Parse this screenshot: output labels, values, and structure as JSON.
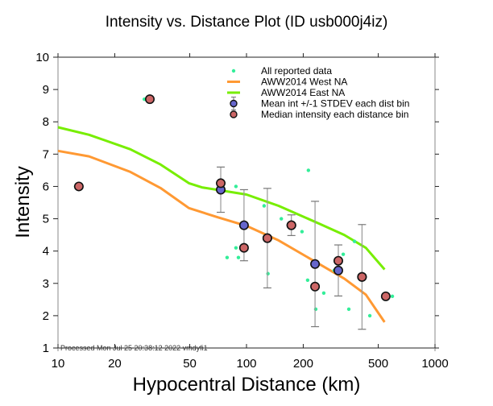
{
  "chart_data": {
    "type": "scatter",
    "title": "Intensity vs. Distance Plot (ID usb000j4iz)",
    "xlabel": "Hypocentral Distance (km)",
    "ylabel": "Intensity",
    "xscale": "log",
    "xlim": [
      10,
      1000
    ],
    "ylim": [
      1,
      10
    ],
    "xticks": [
      10,
      20,
      50,
      100,
      200,
      500,
      1000
    ],
    "xtick_labels": [
      "10",
      "20",
      "50",
      "100",
      "200",
      "500",
      "1000"
    ],
    "yticks": [
      1,
      2,
      3,
      4,
      5,
      6,
      7,
      8,
      9,
      10
    ],
    "ytick_labels": [
      "1",
      "2",
      "3",
      "4",
      "5",
      "6",
      "7",
      "8",
      "9",
      "10"
    ],
    "grid": false,
    "legend_position": "top-right",
    "legend": [
      {
        "label": "All reported data",
        "marker": "dot",
        "color": "#33ee99"
      },
      {
        "label": "AWW2014 West NA",
        "marker": "line",
        "color": "#ff9933"
      },
      {
        "label": "AWW2014 East NA",
        "marker": "line",
        "color": "#77ee00"
      },
      {
        "label": "Mean int +/-1 STDEV each dist bin",
        "marker": "circle-errorbar",
        "color": "#6666cc"
      },
      {
        "label": "Median intensity each distance bin",
        "marker": "circle",
        "color": "#cc6666"
      }
    ],
    "series": [
      {
        "name": "All reported data",
        "type": "scatter",
        "color": "#33ee99",
        "points": [
          [
            12.4,
            6.0
          ],
          [
            28.7,
            8.7
          ],
          [
            87.9,
            6.0
          ],
          [
            78.9,
            3.8
          ],
          [
            90.6,
            3.8
          ],
          [
            87.9,
            4.1
          ],
          [
            124,
            5.4
          ],
          [
            130,
            3.3
          ],
          [
            153,
            5.0
          ],
          [
            197,
            4.6
          ],
          [
            213,
            6.5
          ],
          [
            211,
            3.1
          ],
          [
            233,
            2.2
          ],
          [
            257,
            2.7
          ],
          [
            292,
            3.4
          ],
          [
            326,
            3.9
          ],
          [
            349,
            2.2
          ],
          [
            374,
            4.3
          ],
          [
            451,
            2.0
          ],
          [
            594,
            2.6
          ]
        ]
      },
      {
        "name": "AWW2014 West NA",
        "type": "line",
        "color": "#ff9933",
        "points": [
          [
            10,
            7.1
          ],
          [
            14.6,
            6.93
          ],
          [
            24.2,
            6.45
          ],
          [
            35,
            5.95
          ],
          [
            49.5,
            5.33
          ],
          [
            70,
            5.05
          ],
          [
            100,
            4.78
          ],
          [
            148,
            4.33
          ],
          [
            243,
            3.6
          ],
          [
            330,
            3.15
          ],
          [
            430,
            2.65
          ],
          [
            540,
            1.8
          ]
        ]
      },
      {
        "name": "AWW2014 East NA",
        "type": "line",
        "color": "#77ee00",
        "points": [
          [
            10,
            7.83
          ],
          [
            14.6,
            7.6
          ],
          [
            24.2,
            7.15
          ],
          [
            35,
            6.68
          ],
          [
            49.5,
            6.1
          ],
          [
            58,
            5.97
          ],
          [
            100,
            5.75
          ],
          [
            148,
            5.4
          ],
          [
            243,
            4.85
          ],
          [
            330,
            4.5
          ],
          [
            430,
            4.1
          ],
          [
            540,
            3.43
          ]
        ]
      },
      {
        "name": "Mean int +/-1 STDEV each dist bin",
        "type": "errorbar",
        "color": "#6666cc",
        "points": [
          {
            "x": 73,
            "y": 5.9,
            "sd": 0.7
          },
          {
            "x": 97,
            "y": 4.8,
            "sd": 1.1
          },
          {
            "x": 129,
            "y": 4.4,
            "sd": 1.54
          },
          {
            "x": 173,
            "y": 4.8,
            "sd": 0.32
          },
          {
            "x": 231,
            "y": 3.6,
            "sd": 1.94
          },
          {
            "x": 307,
            "y": 3.4,
            "sd": 0.79
          },
          {
            "x": 410,
            "y": 3.2,
            "sd": 1.62
          }
        ]
      },
      {
        "name": "Median intensity each distance bin",
        "type": "scatter",
        "color": "#cc6666",
        "points": [
          [
            12.9,
            6.0
          ],
          [
            30.7,
            8.7
          ],
          [
            73,
            6.1
          ],
          [
            97,
            4.1
          ],
          [
            129,
            4.4
          ],
          [
            173,
            4.8
          ],
          [
            231,
            2.9
          ],
          [
            307,
            3.7
          ],
          [
            410,
            3.2
          ],
          [
            548,
            2.6
          ]
        ]
      }
    ],
    "footer": "Processed Mon Jul 25 20:38:12 2022 vmdyfi1"
  }
}
